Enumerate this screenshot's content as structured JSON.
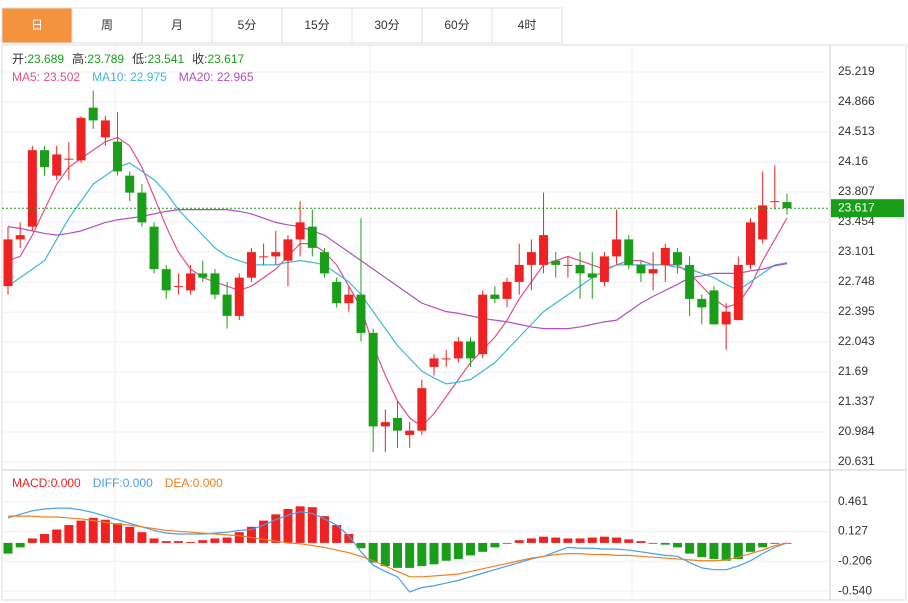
{
  "tabs": [
    "日",
    "周",
    "月",
    "5分",
    "15分",
    "30分",
    "60分",
    "4时"
  ],
  "active_tab": 0,
  "chart_data": [
    {
      "type": "candlestick",
      "ohlc_labels": [
        "开:",
        "高:",
        "低:",
        "收:"
      ],
      "separator": ": ",
      "up_color": "#ee2222",
      "down_color": "#1a9e1a",
      "ylim": [
        20.537,
        25.537
      ],
      "yticks": [
        25.219,
        24.866,
        24.513,
        24.16,
        23.807,
        23.454,
        23.101,
        22.748,
        22.395,
        22.043,
        21.69,
        21.337,
        20.984,
        20.631
      ],
      "grid": true,
      "open": [
        22.7,
        23.25,
        23.4,
        24.3,
        24.0,
        24.2,
        24.18,
        24.8,
        24.45,
        24.4,
        24.0,
        23.8,
        23.4,
        22.9,
        22.7,
        22.65,
        22.85,
        22.85,
        22.6,
        22.35,
        22.8,
        23.05,
        23.05,
        23.0,
        23.25,
        23.4,
        23.1,
        22.75,
        22.5,
        22.6,
        22.15,
        21.05,
        21.15,
        20.95,
        21.0,
        21.75,
        21.85,
        21.85,
        22.05,
        21.9,
        22.6,
        22.55,
        22.75,
        22.95,
        22.95,
        23.0,
        22.95,
        22.95,
        22.85,
        22.75,
        23.05,
        23.25,
        22.95,
        22.85,
        22.95,
        23.1,
        22.95,
        22.55,
        22.65,
        22.25,
        22.3,
        22.95,
        23.25,
        23.7,
        23.689
      ],
      "close": [
        23.25,
        23.3,
        24.3,
        24.1,
        24.25,
        24.2,
        24.68,
        24.65,
        24.65,
        24.05,
        23.8,
        23.45,
        22.9,
        22.65,
        22.7,
        22.85,
        22.8,
        22.6,
        22.35,
        22.8,
        23.1,
        23.05,
        23.1,
        23.25,
        23.45,
        23.15,
        22.85,
        22.5,
        22.6,
        22.15,
        21.05,
        21.1,
        21.0,
        21.0,
        21.5,
        21.85,
        21.85,
        22.05,
        21.85,
        22.6,
        22.55,
        22.75,
        22.95,
        23.1,
        23.3,
        22.95,
        22.95,
        22.85,
        22.8,
        23.05,
        23.25,
        22.95,
        22.85,
        22.9,
        23.15,
        22.95,
        22.55,
        22.45,
        22.25,
        22.4,
        22.95,
        23.45,
        23.65,
        23.7,
        23.617
      ],
      "high": [
        23.4,
        23.45,
        24.35,
        24.35,
        24.35,
        24.4,
        24.7,
        25.0,
        24.7,
        24.75,
        24.05,
        23.9,
        23.45,
        22.95,
        22.85,
        22.95,
        23.0,
        22.9,
        22.75,
        22.85,
        23.15,
        23.2,
        23.35,
        23.3,
        23.7,
        23.6,
        23.15,
        22.8,
        22.7,
        23.5,
        22.2,
        21.25,
        21.35,
        21.1,
        21.6,
        21.9,
        21.95,
        22.1,
        22.1,
        22.65,
        22.7,
        22.8,
        23.2,
        23.25,
        23.8,
        23.1,
        23.05,
        23.1,
        23.1,
        23.1,
        23.6,
        23.3,
        23.0,
        23.1,
        23.2,
        23.15,
        23.05,
        22.6,
        22.7,
        22.5,
        23.05,
        23.5,
        24.05,
        24.12,
        23.789
      ],
      "low": [
        22.6,
        23.15,
        23.35,
        24.0,
        23.95,
        23.95,
        24.15,
        24.55,
        24.35,
        24.0,
        23.7,
        23.4,
        22.85,
        22.55,
        22.6,
        22.6,
        22.75,
        22.55,
        22.2,
        22.3,
        22.75,
        22.95,
        22.95,
        22.7,
        23.05,
        23.05,
        22.8,
        22.45,
        22.4,
        22.05,
        20.75,
        20.75,
        20.8,
        20.8,
        20.95,
        21.65,
        21.75,
        21.8,
        21.75,
        21.85,
        22.5,
        22.45,
        22.6,
        22.65,
        22.85,
        22.8,
        22.8,
        22.55,
        22.55,
        22.7,
        22.95,
        22.9,
        22.75,
        22.65,
        22.75,
        22.85,
        22.35,
        22.25,
        22.25,
        21.95,
        22.3,
        22.9,
        23.2,
        23.6,
        23.541
      ],
      "series": [
        {
          "name": "MA5",
          "color": "#e0508a",
          "latest": 23.502,
          "values": [
            23.0,
            23.05,
            23.3,
            23.6,
            23.9,
            24.1,
            24.2,
            24.3,
            24.4,
            24.45,
            24.35,
            24.1,
            23.75,
            23.4,
            23.1,
            22.9,
            22.8,
            22.75,
            22.7,
            22.65,
            22.7,
            22.8,
            22.9,
            23.05,
            23.2,
            23.2,
            23.1,
            22.95,
            22.7,
            22.45,
            22.0,
            21.65,
            21.35,
            21.15,
            21.05,
            21.2,
            21.4,
            21.6,
            21.8,
            21.95,
            22.1,
            22.3,
            22.55,
            22.75,
            22.95,
            23.0,
            23.05,
            23.0,
            22.95,
            22.9,
            22.95,
            23.0,
            23.0,
            22.95,
            22.95,
            22.95,
            22.85,
            22.7,
            22.55,
            22.45,
            22.5,
            22.7,
            23.0,
            23.25,
            23.502
          ]
        },
        {
          "name": "MA10",
          "color": "#3cb8d8",
          "latest": 22.975,
          "values": [
            22.7,
            22.8,
            22.9,
            23.0,
            23.25,
            23.5,
            23.7,
            23.9,
            24.0,
            24.1,
            24.15,
            24.05,
            23.95,
            23.8,
            23.6,
            23.45,
            23.3,
            23.15,
            23.05,
            23.0,
            22.95,
            22.95,
            22.95,
            22.98,
            23.0,
            22.98,
            22.95,
            22.85,
            22.75,
            22.6,
            22.4,
            22.2,
            22.0,
            21.85,
            21.7,
            21.62,
            21.55,
            21.57,
            21.6,
            21.7,
            21.8,
            21.95,
            22.1,
            22.25,
            22.4,
            22.5,
            22.6,
            22.7,
            22.8,
            22.88,
            22.95,
            22.95,
            22.95,
            22.95,
            22.95,
            22.92,
            22.9,
            22.85,
            22.8,
            22.72,
            22.65,
            22.75,
            22.85,
            22.95,
            22.975
          ]
        },
        {
          "name": "MA20",
          "color": "#b050c0",
          "latest": 22.965,
          "values": [
            23.4,
            23.38,
            23.35,
            23.32,
            23.3,
            23.32,
            23.35,
            23.4,
            23.45,
            23.48,
            23.5,
            23.52,
            23.55,
            23.58,
            23.6,
            23.6,
            23.6,
            23.6,
            23.6,
            23.58,
            23.55,
            23.5,
            23.45,
            23.42,
            23.4,
            23.35,
            23.3,
            23.2,
            23.1,
            23.0,
            22.9,
            22.8,
            22.7,
            22.6,
            22.5,
            22.45,
            22.4,
            22.38,
            22.35,
            22.32,
            22.3,
            22.28,
            22.25,
            22.22,
            22.2,
            22.2,
            22.2,
            22.22,
            22.25,
            22.28,
            22.3,
            22.4,
            22.5,
            22.58,
            22.65,
            22.72,
            22.8,
            22.82,
            22.85,
            22.85,
            22.85,
            22.88,
            22.9,
            22.94,
            22.965
          ]
        }
      ]
    },
    {
      "type": "macd",
      "separator": ":",
      "up_color": "#ee2222",
      "down_color": "#1a9e1a",
      "ylim": [
        -0.64,
        0.75
      ],
      "yticks": [
        0.461,
        0.127,
        -0.206,
        {
          "value": -0.54,
          "label": "-0.540"
        }
      ],
      "series": [
        {
          "name": "MACD",
          "color": "#ee2222",
          "latest": {
            "value": 0,
            "label": "0.000"
          },
          "values": [
            -0.12,
            -0.05,
            0.05,
            0.1,
            0.15,
            0.2,
            0.25,
            0.28,
            0.26,
            0.22,
            0.18,
            0.12,
            0.05,
            0.02,
            0.02,
            0.01,
            0.03,
            0.05,
            0.06,
            0.12,
            0.18,
            0.25,
            0.32,
            0.38,
            0.41,
            0.4,
            0.3,
            0.2,
            0.1,
            -0.06,
            -0.22,
            -0.26,
            -0.28,
            -0.28,
            -0.26,
            -0.24,
            -0.2,
            -0.18,
            -0.14,
            -0.1,
            -0.05,
            0.0,
            0.03,
            0.05,
            0.07,
            0.06,
            0.05,
            0.05,
            0.06,
            0.07,
            0.06,
            0.04,
            0.02,
            0.0,
            -0.02,
            -0.05,
            -0.12,
            -0.16,
            -0.18,
            -0.2,
            -0.18,
            -0.1,
            -0.05,
            -0.01,
            0.0
          ]
        },
        {
          "name": "DIFF",
          "color": "#4a9ee8",
          "latest": {
            "value": 0,
            "label": "0.000"
          },
          "values": [
            0.28,
            0.32,
            0.36,
            0.38,
            0.39,
            0.39,
            0.37,
            0.34,
            0.3,
            0.26,
            0.22,
            0.18,
            0.14,
            0.11,
            0.1,
            0.1,
            0.1,
            0.11,
            0.12,
            0.14,
            0.15,
            0.2,
            0.26,
            0.31,
            0.35,
            0.33,
            0.27,
            0.2,
            0.08,
            -0.1,
            -0.25,
            -0.32,
            -0.38,
            -0.55,
            -0.5,
            -0.48,
            -0.45,
            -0.42,
            -0.38,
            -0.34,
            -0.3,
            -0.26,
            -0.22,
            -0.18,
            -0.15,
            -0.1,
            -0.05,
            -0.06,
            -0.06,
            -0.07,
            -0.07,
            -0.08,
            -0.1,
            -0.12,
            -0.14,
            -0.15,
            -0.22,
            -0.28,
            -0.3,
            -0.3,
            -0.26,
            -0.2,
            -0.12,
            -0.05,
            0.0
          ]
        },
        {
          "name": "DEA",
          "color": "#f08020",
          "latest": {
            "value": 0,
            "label": "0.000"
          },
          "values": [
            0.3,
            0.3,
            0.3,
            0.29,
            0.29,
            0.28,
            0.27,
            0.25,
            0.23,
            0.21,
            0.2,
            0.18,
            0.16,
            0.14,
            0.13,
            0.12,
            0.11,
            0.1,
            0.09,
            0.08,
            0.06,
            0.04,
            0.02,
            0.0,
            -0.01,
            -0.03,
            -0.05,
            -0.08,
            -0.11,
            -0.15,
            -0.2,
            -0.26,
            -0.32,
            -0.38,
            -0.38,
            -0.37,
            -0.36,
            -0.35,
            -0.32,
            -0.29,
            -0.26,
            -0.23,
            -0.2,
            -0.17,
            -0.15,
            -0.13,
            -0.12,
            -0.12,
            -0.13,
            -0.13,
            -0.14,
            -0.14,
            -0.15,
            -0.16,
            -0.17,
            -0.18,
            -0.19,
            -0.2,
            -0.2,
            -0.19,
            -0.16,
            -0.12,
            -0.08,
            -0.03,
            0.0
          ]
        }
      ]
    }
  ]
}
